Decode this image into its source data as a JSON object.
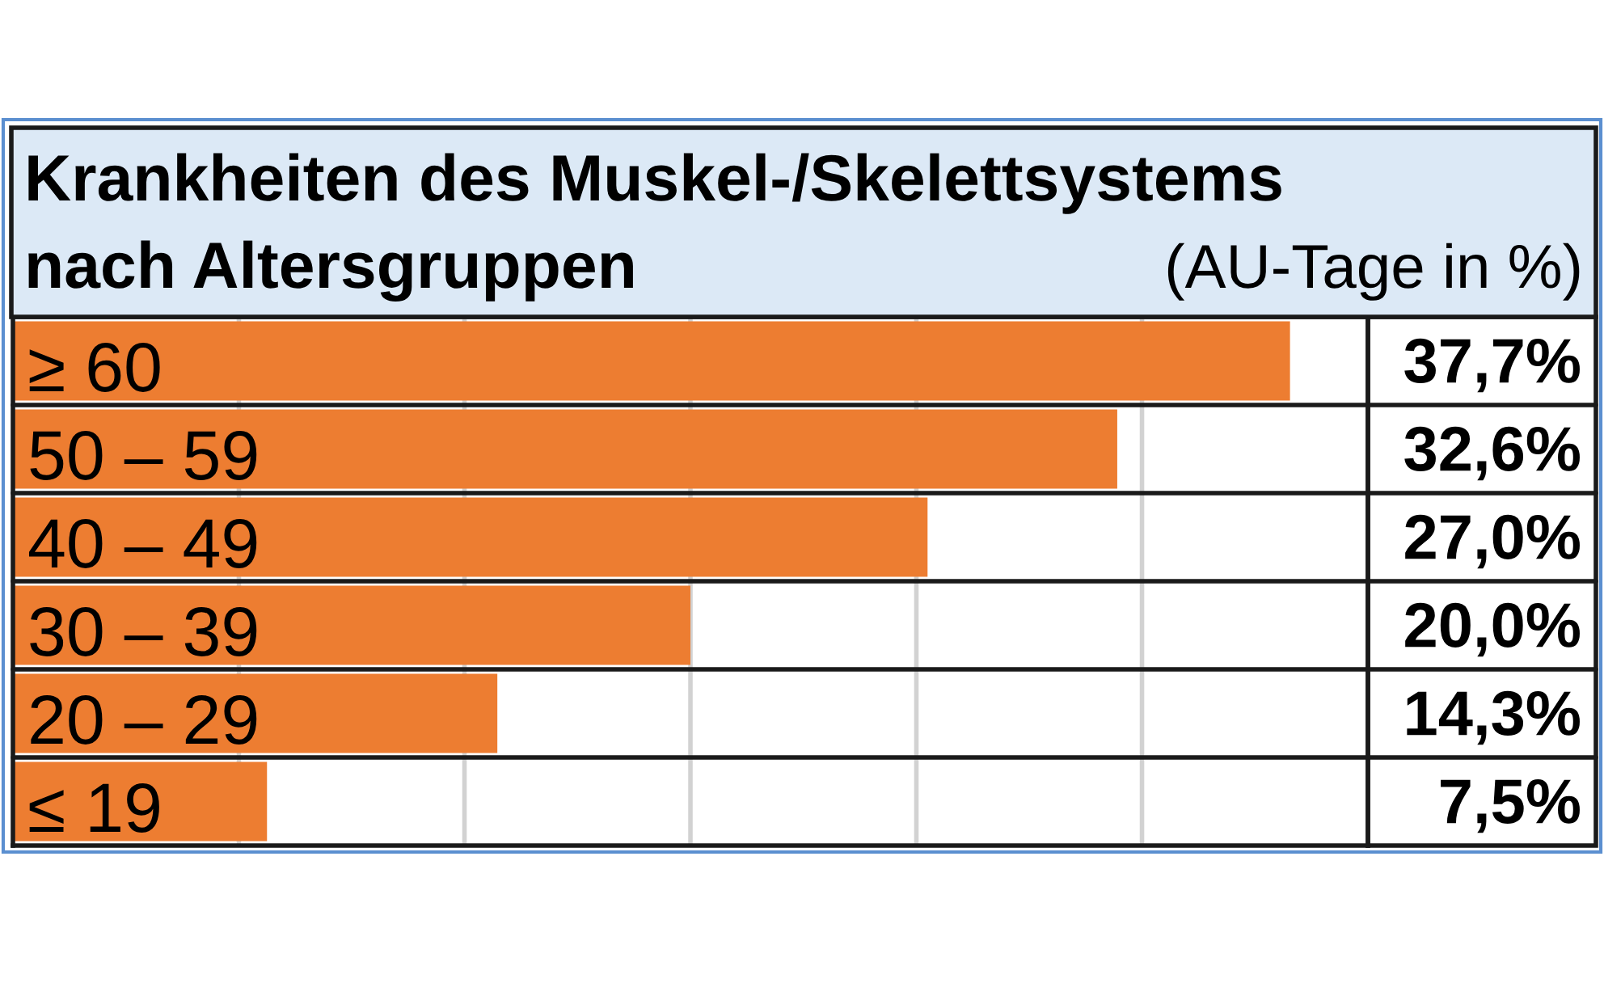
{
  "chart_data": {
    "type": "bar",
    "orientation": "horizontal",
    "title": "Krankheiten des Muskel-/Skelettsystems",
    "subtitle": "nach Altersgruppen",
    "xlabel": "(AU-Tage in %)",
    "categories": [
      "≥ 60",
      "50 – 59",
      "40 – 49",
      "30 – 39",
      "20 – 29",
      "≤ 19"
    ],
    "values": [
      37.7,
      32.6,
      27.0,
      20.0,
      14.3,
      7.5
    ],
    "value_labels": [
      "37,7%",
      "32,6%",
      "27,0%",
      "20,0%",
      "14,3%",
      "7,5%"
    ],
    "color": "#ed7d31",
    "xlim": [
      0,
      40
    ],
    "xticks": [
      {
        "value": 6.67,
        "label": null
      },
      {
        "value": 13.33,
        "label": null
      },
      {
        "value": 20,
        "label": null
      },
      {
        "value": 26.67,
        "label": null
      },
      {
        "value": 33.33,
        "label": null
      }
    ],
    "grid": "x",
    "tick_labels": "y"
  }
}
